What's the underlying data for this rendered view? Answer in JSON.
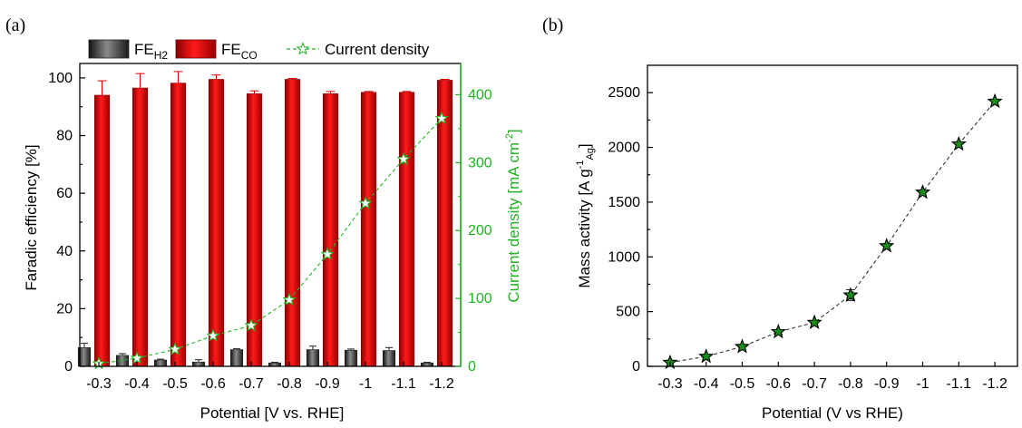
{
  "panels": {
    "a": {
      "letter": "(a)"
    },
    "b": {
      "letter": "(b)"
    }
  },
  "colors": {
    "fe_h2": "#3a3a3a",
    "fe_co": "#e00000",
    "current_density": "#22b422",
    "mass_activity_marker": "#1a8a1a",
    "axis": "#000000"
  },
  "chart_data": [
    {
      "type": "bar",
      "categories": [
        "-0.3",
        "-0.4",
        "-0.5",
        "-0.6",
        "-0.7",
        "-0.8",
        "-0.9",
        "-1",
        "-1.1",
        "-1.2"
      ],
      "xlabel": "Potential [V vs. RHE]",
      "ylabel": "Faradic efficiency [%]",
      "ylim": [
        0,
        105
      ],
      "yticks": [
        0,
        20,
        40,
        60,
        80,
        100
      ],
      "y2label_main": "Current density [mA cm",
      "y2label_sup": "-2",
      "y2label_end": "]",
      "y2lim": [
        0,
        446
      ],
      "y2ticks": [
        0,
        100,
        200,
        300,
        400
      ],
      "legend_placement": "top",
      "series": [
        {
          "name_main": "FE",
          "name_sub": "H2",
          "kind": "bar",
          "values": [
            6.5,
            3.8,
            2.2,
            1.5,
            5.8,
            1.2,
            5.8,
            5.6,
            5.5,
            1.2
          ],
          "errors": [
            1.5,
            0.6,
            0.3,
            0.8,
            0.3,
            0.2,
            1.2,
            0.4,
            1.0,
            0.2
          ]
        },
        {
          "name_main": "FE",
          "name_sub": "CO",
          "kind": "bar",
          "values": [
            94,
            96.5,
            98.2,
            99.5,
            94.5,
            99.5,
            94.5,
            95,
            95,
            99.2
          ],
          "errors": [
            5,
            5,
            4,
            1.5,
            1,
            0.3,
            0.8,
            0.3,
            0.3,
            0.3
          ]
        },
        {
          "name": "Current density",
          "kind": "line",
          "axis": "right",
          "values": [
            4,
            12,
            25,
            45,
            60,
            98,
            165,
            240,
            305,
            365
          ],
          "errors": [
            0,
            0,
            0,
            0,
            0,
            0,
            0,
            0,
            8,
            0
          ]
        }
      ]
    },
    {
      "type": "scatter",
      "x": [
        "-0.3",
        "-0.4",
        "-0.5",
        "-0.6",
        "-0.7",
        "-0.8",
        "-0.9",
        "-1",
        "-1.1",
        "-1.2"
      ],
      "values": [
        35,
        90,
        180,
        315,
        400,
        650,
        1100,
        1590,
        2030,
        2420
      ],
      "errors": [
        0,
        0,
        0,
        20,
        0,
        50,
        0,
        0,
        0,
        0
      ],
      "xlabel": "Potential (V vs RHE)",
      "ylabel_main": "Mass activity [A g",
      "ylabel_sup": "-1",
      "ylabel_sub": "Ag",
      "ylabel_end": "]",
      "ylim": [
        0,
        2750
      ],
      "yticks": [
        0,
        500,
        1000,
        1500,
        2000,
        2500
      ],
      "marker": "star",
      "connector": "dashed"
    }
  ]
}
